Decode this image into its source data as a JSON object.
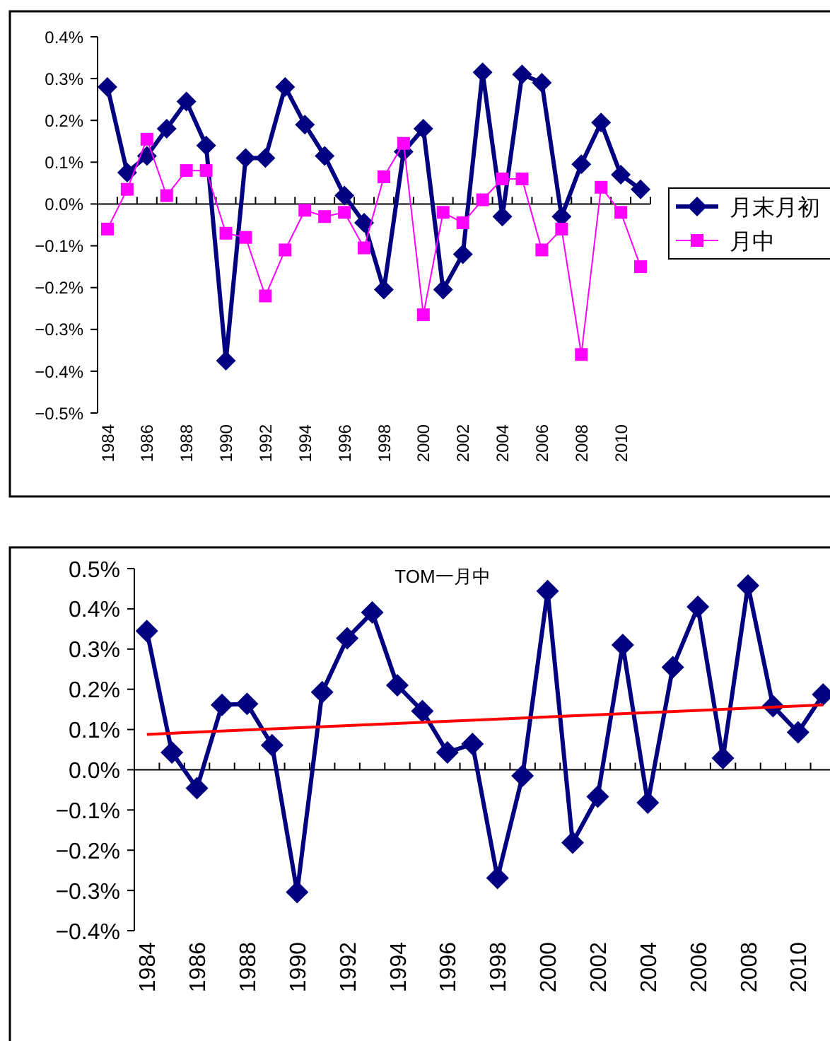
{
  "chart_data": [
    {
      "type": "line",
      "categories": [
        "1984",
        null,
        "1986",
        null,
        "1988",
        null,
        "1990",
        null,
        "1992",
        null,
        "1994",
        null,
        "1996",
        null,
        "1998",
        null,
        "2000",
        null,
        "2002",
        null,
        "2004",
        null,
        "2006",
        null,
        "2008",
        null,
        "2010",
        null
      ],
      "series": [
        {
          "name": "月末月初",
          "color": "#000080",
          "marker": "diamond",
          "values": [
            0.28,
            0.075,
            0.115,
            0.18,
            0.245,
            0.14,
            -0.375,
            0.11,
            0.11,
            0.28,
            0.19,
            0.115,
            0.02,
            -0.045,
            -0.205,
            0.125,
            0.18,
            -0.205,
            -0.12,
            0.315,
            -0.03,
            0.31,
            0.29,
            -0.03,
            0.095,
            0.195,
            0.07,
            0.035
          ]
        },
        {
          "name": "月中",
          "color": "#ff00ff",
          "marker": "square",
          "values": [
            -0.06,
            0.035,
            0.155,
            0.02,
            0.08,
            0.08,
            -0.07,
            -0.08,
            -0.22,
            -0.11,
            -0.015,
            -0.03,
            -0.02,
            -0.105,
            0.065,
            0.145,
            -0.265,
            -0.02,
            -0.045,
            0.01,
            0.06,
            0.06,
            -0.11,
            -0.06,
            -0.36,
            0.04,
            -0.02,
            -0.15
          ]
        }
      ],
      "ylim": [
        -0.5,
        0.4
      ],
      "yticks": [
        {
          "value": 0.4,
          "label": "0.4%"
        },
        {
          "value": 0.3,
          "label": "0.3%"
        },
        {
          "value": 0.2,
          "label": "0.2%"
        },
        {
          "value": 0.1,
          "label": "0.1%"
        },
        {
          "value": 0,
          "label": "0.0%"
        },
        {
          "value": -0.1,
          "label": "−0.1%"
        },
        {
          "value": -0.2,
          "label": "−0.2%"
        },
        {
          "value": -0.3,
          "label": "−0.3%"
        },
        {
          "value": -0.4,
          "label": "−0.4%"
        },
        {
          "value": -0.5,
          "label": "−0.5%"
        }
      ],
      "legend": "right"
    },
    {
      "type": "line",
      "title": "TOM一月中",
      "categories": [
        "1984",
        null,
        "1986",
        null,
        "1988",
        null,
        "1990",
        null,
        "1992",
        null,
        "1994",
        null,
        "1996",
        null,
        "1998",
        null,
        "2000",
        null,
        "2002",
        null,
        "2004",
        null,
        "2006",
        null,
        "2008",
        null,
        "2010",
        null
      ],
      "series": [
        {
          "color": "#000080",
          "marker": "diamond",
          "values": [
            0.345,
            0.043,
            -0.046,
            0.161,
            0.164,
            0.061,
            -0.304,
            0.193,
            0.327,
            0.391,
            0.21,
            0.146,
            0.043,
            0.064,
            -0.269,
            -0.015,
            0.444,
            -0.181,
            -0.067,
            0.31,
            -0.082,
            0.255,
            0.405,
            0.029,
            0.458,
            0.158,
            0.093,
            0.187
          ]
        },
        {
          "color": "#ff0000",
          "marker": "none",
          "values": [
            0.088,
            null,
            null,
            null,
            null,
            null,
            null,
            null,
            null,
            null,
            null,
            null,
            null,
            null,
            null,
            null,
            null,
            null,
            null,
            null,
            null,
            null,
            null,
            null,
            null,
            null,
            null,
            0.161
          ]
        }
      ],
      "ylim": [
        -0.4,
        0.5
      ],
      "yticks": [
        {
          "value": 0.5,
          "label": "0.5%"
        },
        {
          "value": 0.4,
          "label": "0.4%"
        },
        {
          "value": 0.3,
          "label": "0.3%"
        },
        {
          "value": 0.2,
          "label": "0.2%"
        },
        {
          "value": 0.1,
          "label": "0.1%"
        },
        {
          "value": 0,
          "label": "0.0%"
        },
        {
          "value": -0.1,
          "label": "−0.1%"
        },
        {
          "value": -0.2,
          "label": "−0.2%"
        },
        {
          "value": -0.3,
          "label": "−0.3%"
        },
        {
          "value": -0.4,
          "label": "−0.4%"
        }
      ],
      "legend": false
    }
  ]
}
